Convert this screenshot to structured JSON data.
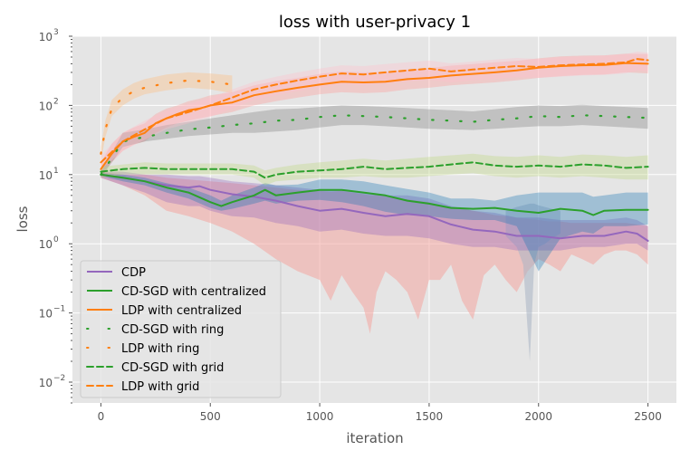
{
  "chart_data": {
    "type": "line",
    "title": "loss with user-privacy  1",
    "xlabel": "iteration",
    "ylabel": "loss",
    "xlim": [
      -130,
      2630
    ],
    "ylim": [
      0.005,
      1000
    ],
    "yscale": "log",
    "xticks": [
      0,
      500,
      1000,
      1500,
      2000,
      2500
    ],
    "xtick_labels": [
      "0",
      "500",
      "1000",
      "1500",
      "2000",
      "2500"
    ],
    "yticks": [
      0.01,
      0.1,
      1,
      10,
      100,
      1000
    ],
    "ytick_labels": [
      {
        "base": "10",
        "exp": "−2"
      },
      {
        "base": "10",
        "exp": "−1"
      },
      {
        "base": "10",
        "exp": "0"
      },
      {
        "base": "10",
        "exp": "1"
      },
      {
        "base": "10",
        "exp": "2"
      },
      {
        "base": "10",
        "exp": "3"
      }
    ],
    "grid": true,
    "legend_position": "lower-left",
    "background": "#e5e5e5",
    "series": [
      {
        "name": "CDP",
        "color": "#9467bd",
        "style": "solid",
        "x": [
          0,
          100,
          200,
          300,
          400,
          450,
          500,
          600,
          700,
          800,
          900,
          1000,
          1100,
          1200,
          1300,
          1400,
          1500,
          1600,
          1700,
          1800,
          1900,
          2000,
          2100,
          2200,
          2300,
          2400,
          2450,
          2500
        ],
        "y": [
          10,
          9,
          8,
          7,
          6.5,
          6.8,
          6,
          5.2,
          4.8,
          4.2,
          3.5,
          3,
          3.2,
          2.8,
          2.5,
          2.7,
          2.5,
          1.9,
          1.6,
          1.5,
          1.3,
          1.3,
          1.2,
          1.3,
          1.3,
          1.5,
          1.4,
          1.1
        ],
        "band_lo": [
          9,
          7,
          5.5,
          4,
          3.5,
          3.5,
          3,
          2.5,
          2.4,
          2,
          1.8,
          1.5,
          1.6,
          1.4,
          1.3,
          1.3,
          1.2,
          1,
          0.9,
          0.9,
          0.8,
          0.8,
          0.8,
          0.9,
          0.9,
          1,
          1,
          0.8
        ],
        "band_hi": [
          11,
          11,
          10,
          10,
          9.5,
          9.5,
          9,
          8,
          7.5,
          7,
          6.5,
          6,
          6,
          5.5,
          5,
          5,
          4.5,
          3.5,
          3,
          2.8,
          2.4,
          2.4,
          2.2,
          2.2,
          2.2,
          2.4,
          2.2,
          1.8
        ],
        "band_color": "#9467bd"
      },
      {
        "name": "CD-SGD with centralized",
        "color": "#2ca02c",
        "style": "solid",
        "x": [
          0,
          100,
          200,
          300,
          400,
          500,
          550,
          600,
          700,
          750,
          800,
          900,
          1000,
          1100,
          1200,
          1300,
          1400,
          1500,
          1600,
          1700,
          1800,
          1900,
          2000,
          2100,
          2200,
          2250,
          2300,
          2400,
          2500
        ],
        "y": [
          10,
          9,
          8,
          6.5,
          5.5,
          4,
          3.5,
          4,
          5,
          6,
          5,
          5.5,
          6,
          6,
          5.5,
          5,
          4.2,
          3.8,
          3.3,
          3.2,
          3.3,
          3,
          2.8,
          3.2,
          3,
          2.6,
          3,
          3.1,
          3.1
        ],
        "band_lo": [
          9.5,
          8,
          7,
          5.5,
          4.5,
          3.3,
          3,
          3.2,
          3.8,
          4.2,
          3.8,
          4.2,
          4.3,
          4,
          3.5,
          2.9,
          2.6,
          2.5,
          2.3,
          2.2,
          2.2,
          1.8,
          0.4,
          1.2,
          1.5,
          1.4,
          1.8,
          1.8,
          1.9
        ],
        "band_hi": [
          10.5,
          10,
          9,
          7.5,
          6.5,
          5,
          4.2,
          5,
          6.5,
          7.5,
          7,
          7.2,
          8.5,
          8.5,
          8,
          7,
          6.2,
          5.5,
          4.5,
          4.5,
          4.2,
          5,
          5.5,
          5.5,
          5.5,
          4.8,
          5,
          5.5,
          5.5
        ],
        "band_color": "#1f77b4"
      },
      {
        "name": "LDP with centralized",
        "color": "#ff7f0e",
        "style": "solid",
        "x": [
          0,
          50,
          100,
          150,
          200,
          250,
          300,
          350,
          400,
          450,
          500,
          600,
          700,
          800,
          900,
          1000,
          1100,
          1200,
          1300,
          1400,
          1500,
          1600,
          1700,
          1800,
          1900,
          2000,
          2100,
          2200,
          2300,
          2400,
          2500
        ],
        "y": [
          12,
          20,
          30,
          35,
          40,
          55,
          65,
          75,
          85,
          90,
          100,
          110,
          140,
          160,
          180,
          200,
          220,
          215,
          220,
          240,
          250,
          270,
          285,
          300,
          320,
          350,
          370,
          380,
          385,
          410,
          400
        ],
        "band_lo": [
          10,
          15,
          22,
          27,
          30,
          40,
          48,
          55,
          60,
          65,
          70,
          80,
          100,
          115,
          130,
          145,
          155,
          150,
          155,
          170,
          180,
          195,
          205,
          215,
          230,
          250,
          265,
          275,
          280,
          300,
          290
        ],
        "band_hi": [
          15,
          28,
          40,
          48,
          55,
          75,
          90,
          100,
          115,
          125,
          140,
          155,
          195,
          225,
          250,
          285,
          310,
          300,
          305,
          330,
          345,
          375,
          395,
          420,
          440,
          480,
          510,
          525,
          530,
          560,
          550
        ],
        "band_color": "#ff9896"
      },
      {
        "name": "CD-SGD with ring",
        "color": "#2ca02c",
        "style": "dotted",
        "x": [
          0,
          100,
          200,
          300,
          400,
          500,
          600,
          700,
          800,
          900,
          1000,
          1100,
          1200,
          1300,
          1400,
          1500,
          1600,
          1700,
          1800,
          1900,
          2000,
          2100,
          2200,
          2300,
          2400,
          2500
        ],
        "y": [
          10,
          30,
          35,
          40,
          45,
          48,
          52,
          55,
          60,
          62,
          68,
          72,
          70,
          68,
          65,
          62,
          60,
          58,
          62,
          65,
          70,
          68,
          72,
          70,
          68,
          66
        ],
        "band_lo": [
          9,
          25,
          30,
          33,
          36,
          38,
          40,
          40,
          42,
          44,
          48,
          52,
          52,
          50,
          48,
          46,
          45,
          44,
          46,
          48,
          50,
          50,
          52,
          50,
          48,
          46
        ],
        "band_hi": [
          11,
          40,
          45,
          52,
          58,
          65,
          72,
          80,
          88,
          90,
          95,
          100,
          98,
          95,
          92,
          88,
          85,
          82,
          88,
          95,
          100,
          98,
          102,
          98,
          95,
          92
        ],
        "band_color": "#7f7f7f"
      },
      {
        "name": "LDP with ring",
        "color": "#ff7f0e",
        "style": "dotted",
        "x": [
          0,
          20,
          50,
          100,
          150,
          200,
          300,
          400,
          500,
          600
        ],
        "y": [
          20,
          45,
          90,
          130,
          160,
          180,
          210,
          230,
          220,
          200
        ],
        "band_lo": [
          15,
          35,
          70,
          100,
          125,
          145,
          165,
          180,
          170,
          150
        ],
        "band_hi": [
          25,
          60,
          120,
          170,
          210,
          240,
          280,
          300,
          290,
          270
        ],
        "band_color": "#ffbb78"
      },
      {
        "name": "CD-SGD with grid",
        "color": "#2ca02c",
        "style": "dashed",
        "x": [
          0,
          100,
          200,
          300,
          400,
          500,
          600,
          700,
          750,
          800,
          900,
          1000,
          1100,
          1200,
          1300,
          1400,
          1500,
          1600,
          1700,
          1800,
          1900,
          2000,
          2100,
          2200,
          2300,
          2400,
          2500
        ],
        "y": [
          11,
          12,
          12.5,
          12,
          12,
          12,
          12,
          11,
          9,
          10,
          11,
          11.5,
          12,
          13,
          12,
          12.5,
          13,
          14,
          15,
          13.5,
          13,
          13.5,
          13,
          14,
          13.5,
          12.5,
          13
        ],
        "band_lo": [
          9,
          10,
          10,
          10,
          10,
          10,
          10,
          9,
          7,
          8,
          8.5,
          9,
          9,
          9.5,
          9,
          9,
          9.5,
          10,
          10.5,
          9.5,
          9,
          9.5,
          9,
          9.5,
          9,
          8.5,
          8.5
        ],
        "band_hi": [
          13,
          14,
          15,
          14.5,
          14.5,
          14.5,
          14.5,
          13.5,
          11.5,
          12.5,
          14,
          15,
          16,
          17,
          16,
          17,
          18,
          19,
          20,
          18.5,
          18,
          19,
          18,
          19.5,
          19,
          18,
          19
        ],
        "band_color": "#bcd67f"
      },
      {
        "name": "LDP with grid",
        "color": "#ff7f0e",
        "style": "dashed",
        "x": [
          0,
          100,
          200,
          300,
          400,
          500,
          600,
          700,
          800,
          900,
          1000,
          1100,
          1200,
          1300,
          1400,
          1500,
          1600,
          1700,
          1800,
          1900,
          2000,
          2100,
          2200,
          2300,
          2400,
          2450,
          2500
        ],
        "y": [
          15,
          30,
          45,
          65,
          80,
          100,
          130,
          170,
          200,
          230,
          260,
          290,
          280,
          300,
          320,
          340,
          310,
          330,
          350,
          370,
          360,
          380,
          390,
          400,
          420,
          470,
          450
        ],
        "band_lo": [
          12,
          22,
          32,
          45,
          55,
          68,
          90,
          120,
          140,
          160,
          180,
          200,
          195,
          205,
          220,
          235,
          215,
          230,
          240,
          255,
          250,
          260,
          270,
          275,
          290,
          320,
          310
        ],
        "band_hi": [
          19,
          40,
          60,
          85,
          105,
          130,
          170,
          220,
          260,
          300,
          340,
          380,
          370,
          395,
          420,
          445,
          405,
          430,
          460,
          485,
          470,
          500,
          510,
          525,
          550,
          600,
          580
        ],
        "band_color": "#ffc0cb"
      }
    ],
    "extra_bands": [
      {
        "color": "#f4a6a0",
        "x": [
          0,
          100,
          200,
          300,
          400,
          500,
          600,
          700,
          800,
          900,
          1000,
          1050,
          1100,
          1150,
          1200,
          1230,
          1260,
          1300,
          1350,
          1400,
          1450,
          1500,
          1550,
          1600,
          1650,
          1700,
          1750,
          1800,
          1850,
          1900,
          1950,
          2000,
          2050,
          2100,
          2150,
          2200,
          2250,
          2300,
          2350,
          2400,
          2450,
          2500
        ],
        "lo": [
          9,
          7,
          5,
          3,
          2.5,
          2,
          1.5,
          1,
          0.6,
          0.4,
          0.3,
          0.15,
          0.35,
          0.2,
          0.12,
          0.05,
          0.2,
          0.4,
          0.3,
          0.2,
          0.08,
          0.3,
          0.3,
          0.5,
          0.15,
          0.08,
          0.35,
          0.5,
          0.3,
          0.2,
          0.4,
          0.6,
          0.5,
          0.4,
          0.7,
          0.6,
          0.5,
          0.7,
          0.8,
          0.8,
          0.7,
          0.5
        ],
        "hi": [
          11,
          10,
          10,
          9,
          8.5,
          8,
          7.5,
          7,
          6.5,
          6,
          5.8,
          5.6,
          5.8,
          5.5,
          5.2,
          5,
          5.1,
          4.9,
          4.6,
          4.4,
          4.2,
          4,
          3.6,
          3.4,
          3.2,
          3,
          2.8,
          2.6,
          2.5,
          2.4,
          2.3,
          2.2,
          2.1,
          2.1,
          2,
          2,
          2,
          2,
          2,
          2,
          1.9,
          1.8
        ]
      },
      {
        "color": "#aab4c4",
        "x": [
          1850,
          1900,
          1930,
          1960,
          1980,
          2000,
          2030,
          2060,
          2100
        ],
        "lo": [
          1.3,
          0.9,
          0.5,
          0.02,
          0.5,
          0.9,
          1.0,
          1.2,
          1.4
        ],
        "hi": [
          3,
          3.4,
          3.6,
          3.8,
          3.8,
          3.6,
          3.4,
          3.2,
          3
        ]
      }
    ]
  }
}
